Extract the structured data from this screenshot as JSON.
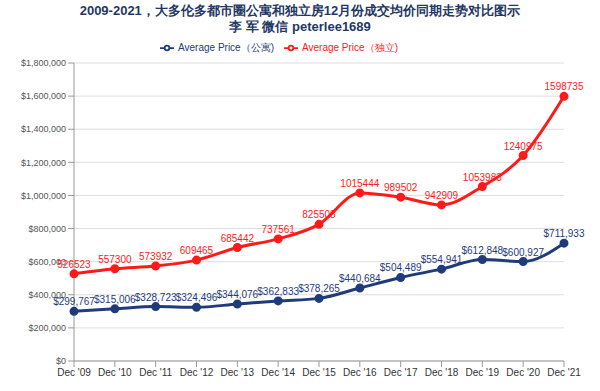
{
  "chart_data": {
    "type": "line",
    "title": "2009-2021，大多伦多都市圈公寓和独立房12月份成交均价同期走势对比图示",
    "subtitle": "李 军  微信 peterlee1689",
    "categories": [
      "Dec '09",
      "Dec '10",
      "Dec '11",
      "Dec '12",
      "Dec '13",
      "Dec '14",
      "Dec '15",
      "Dec '16",
      "Dec '17",
      "Dec '18",
      "Dec '19",
      "Dec '20",
      "Dec '21"
    ],
    "series": [
      {
        "name": "Average Price（公寓)",
        "color": "#1f3b7a",
        "marker": "circle",
        "values": [
          299767,
          315006,
          328723,
          324496,
          344076,
          362833,
          378265,
          440684,
          504489,
          554941,
          612848,
          600927,
          711933
        ],
        "value_labels": [
          "$299,767",
          "$315,006",
          "$328,723",
          "$324,496",
          "$344,076",
          "$362,833",
          "$378,265",
          "$440,684",
          "$504,489",
          "$554,941",
          "$612,848",
          "$600,927",
          "$711,933"
        ]
      },
      {
        "name": "Average Price（独立)",
        "color": "#ff1a1a",
        "marker": "circle",
        "values": [
          526523,
          557300,
          573932,
          609465,
          685442,
          737561,
          825508,
          1015444,
          989502,
          942909,
          1053983,
          1240975,
          1598735
        ]
      }
    ],
    "ylim": [
      0,
      1800000
    ],
    "yticks": [
      {
        "value": 0,
        "label": "$0"
      },
      {
        "value": 200000,
        "label": "$200,000"
      },
      {
        "value": 400000,
        "label": "$400,000"
      },
      {
        "value": 600000,
        "label": "$600,000"
      },
      {
        "value": 800000,
        "label": "$800,000"
      },
      {
        "value": 1000000,
        "label": "$1,000,000"
      },
      {
        "value": 1200000,
        "label": "$1,200,000"
      },
      {
        "value": 1400000,
        "label": "$1,400,000"
      },
      {
        "value": 1600000,
        "label": "$1,600,000"
      },
      {
        "value": 1800000,
        "label": "$1,800,000"
      }
    ],
    "grid": true,
    "legend": "top",
    "data_labels": true
  }
}
